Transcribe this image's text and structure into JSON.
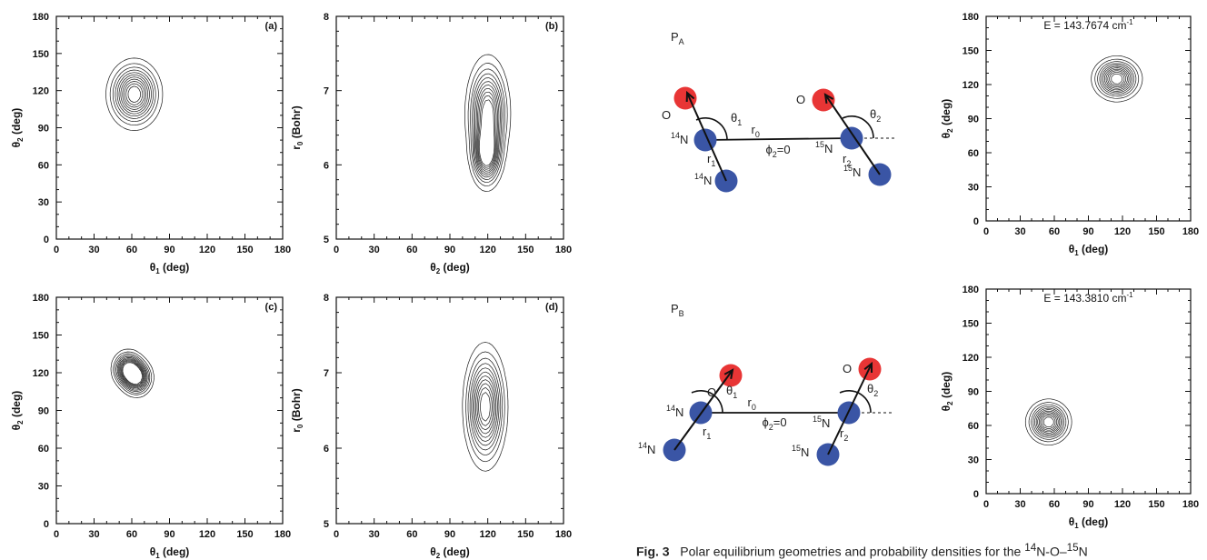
{
  "panels": [
    {
      "id": "a",
      "label": "(a)",
      "xlabel": "θ",
      "xsub": "1",
      "xunit": " (deg)",
      "ylabel": "θ",
      "ysub": "2",
      "yunit": " (deg)",
      "xticks": [
        "0",
        "30",
        "60",
        "90",
        "120",
        "150",
        "180"
      ],
      "yticks": [
        "0",
        "30",
        "60",
        "90",
        "120",
        "150",
        "180"
      ],
      "xlim": [
        0,
        180
      ],
      "ylim": [
        0,
        180
      ],
      "peaks": [
        {
          "x": 62,
          "y": 117,
          "sx": 10,
          "sy": 13
        }
      ]
    },
    {
      "id": "b",
      "label": "(b)",
      "xlabel": "θ",
      "xsub": "2",
      "xunit": " (deg)",
      "ylabel": "r",
      "ysub": "0",
      "yunit": " (Bohr)",
      "xticks": [
        "0",
        "30",
        "60",
        "90",
        "120",
        "150",
        "180"
      ],
      "yticks": [
        "5",
        "6",
        "7",
        "8"
      ],
      "xlim": [
        0,
        180
      ],
      "ylim": [
        5,
        8
      ],
      "peaks": [
        {
          "x": 119,
          "y": 6.15,
          "sx": 6,
          "sy": 0.22
        },
        {
          "x": 120,
          "y": 6.7,
          "sx": 8,
          "sy": 0.35
        }
      ]
    },
    {
      "id": "c",
      "label": "(c)",
      "xlabel": "θ",
      "xsub": "1",
      "xunit": " (deg)",
      "ylabel": "θ",
      "ysub": "2",
      "yunit": " (deg)",
      "xticks": [
        "0",
        "30",
        "60",
        "90",
        "120",
        "150",
        "180"
      ],
      "yticks": [
        "0",
        "30",
        "60",
        "90",
        "120",
        "150",
        "180"
      ],
      "xlim": [
        0,
        180
      ],
      "ylim": [
        0,
        180
      ],
      "peaks": [
        {
          "x": 57,
          "y": 123,
          "sx": 6,
          "sy": 7
        },
        {
          "x": 64,
          "y": 116,
          "sx": 6,
          "sy": 7
        }
      ]
    },
    {
      "id": "d",
      "label": "(d)",
      "xlabel": "θ",
      "xsub": "2",
      "xunit": " (deg)",
      "ylabel": "r",
      "ysub": "0",
      "yunit": " (Bohr)",
      "xticks": [
        "0",
        "30",
        "60",
        "90",
        "120",
        "150",
        "180"
      ],
      "yticks": [
        "5",
        "6",
        "7",
        "8"
      ],
      "xlim": [
        0,
        180
      ],
      "ylim": [
        5,
        8
      ],
      "peaks": [
        {
          "x": 118,
          "y": 6.55,
          "sx": 8,
          "sy": 0.38
        }
      ]
    },
    {
      "id": "e",
      "energy": "E =  143.7674 cm",
      "energy_sup": "-1",
      "xlabel": "θ",
      "xsub": "1",
      "xunit": " (deg)",
      "ylabel": "θ",
      "ysub": "2",
      "yunit": " (deg)",
      "xticks": [
        "0",
        "30",
        "60",
        "90",
        "120",
        "150",
        "180"
      ],
      "yticks": [
        "0",
        "30",
        "60",
        "90",
        "120",
        "150",
        "180"
      ],
      "xlim": [
        0,
        180
      ],
      "ylim": [
        0,
        180
      ],
      "peaks": [
        {
          "x": 115,
          "y": 125,
          "sx": 10,
          "sy": 9
        }
      ]
    },
    {
      "id": "f",
      "energy": "E =  143.3810 cm",
      "energy_sup": "-1",
      "xlabel": "θ",
      "xsub": "1",
      "xunit": " (deg)",
      "ylabel": "θ",
      "ysub": "2",
      "yunit": " (deg)",
      "xticks": [
        "0",
        "30",
        "60",
        "90",
        "120",
        "150",
        "180"
      ],
      "yticks": [
        "0",
        "30",
        "60",
        "90",
        "120",
        "150",
        "180"
      ],
      "xlim": [
        0,
        180
      ],
      "ylim": [
        0,
        180
      ],
      "peaks": [
        {
          "x": 55,
          "y": 63,
          "sx": 9,
          "sy": 9
        }
      ]
    }
  ],
  "diagrams": [
    {
      "title": "P",
      "title_sub": "A",
      "O": "O",
      "N14": "N",
      "N14_sup": "14",
      "N15": "N",
      "N15_sup": "15",
      "r0": "r",
      "r0_sub": "0",
      "r1": "r",
      "r1_sub": "1",
      "r2": "r",
      "r2_sub": "2",
      "t1": "θ",
      "t1_sub": "1",
      "t2": "θ",
      "t2_sub": "2",
      "phi": "ϕ",
      "phi_sub": "2",
      "phi_val": "=0"
    },
    {
      "title": "P",
      "title_sub": "B",
      "O": "O",
      "N14": "N",
      "N14_sup": "14",
      "N15": "N",
      "N15_sup": "15",
      "r0": "r",
      "r0_sub": "0",
      "r1": "r",
      "r1_sub": "1",
      "r2": "r",
      "r2_sub": "2",
      "t1": "θ",
      "t1_sub": "1",
      "t2": "θ",
      "t2_sub": "2",
      "phi": "ϕ",
      "phi_sub": "2",
      "phi_val": "=0"
    }
  ],
  "caption": {
    "label": "Fig. 3",
    "text": "Polar equilibrium geometries and probability densities for the ",
    "sup1": "14",
    "mid": "N-O–",
    "sup2": "15",
    "end": "N"
  },
  "colors": {
    "oxygen": "#e83535",
    "nitrogen": "#3a55a5"
  }
}
